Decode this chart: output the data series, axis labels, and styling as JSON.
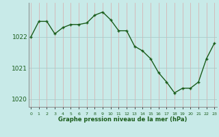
{
  "hours": [
    0,
    1,
    2,
    3,
    4,
    5,
    6,
    7,
    8,
    9,
    10,
    11,
    12,
    13,
    14,
    15,
    16,
    17,
    18,
    19,
    20,
    21,
    22,
    23
  ],
  "pressure": [
    1022.0,
    1022.5,
    1022.5,
    1022.1,
    1022.3,
    1022.4,
    1022.4,
    1022.45,
    1022.7,
    1022.8,
    1022.55,
    1022.2,
    1022.2,
    1021.7,
    1021.55,
    1021.3,
    1020.85,
    1020.55,
    1020.2,
    1020.35,
    1020.35,
    1020.55,
    1021.3,
    1021.8
  ],
  "line_color": "#1a5c1a",
  "marker_color": "#1a5c1a",
  "bg_color": "#c8eae8",
  "grid_color_h": "#aacaca",
  "grid_color_v": "#d8a8a8",
  "axis_label_color": "#1a5c1a",
  "tick_label_color": "#1a5c1a",
  "xlabel": "Graphe pression niveau de la mer (hPa)",
  "yticks": [
    1020,
    1021,
    1022
  ],
  "ylim": [
    1019.75,
    1023.1
  ],
  "xlim": [
    -0.3,
    23.3
  ]
}
